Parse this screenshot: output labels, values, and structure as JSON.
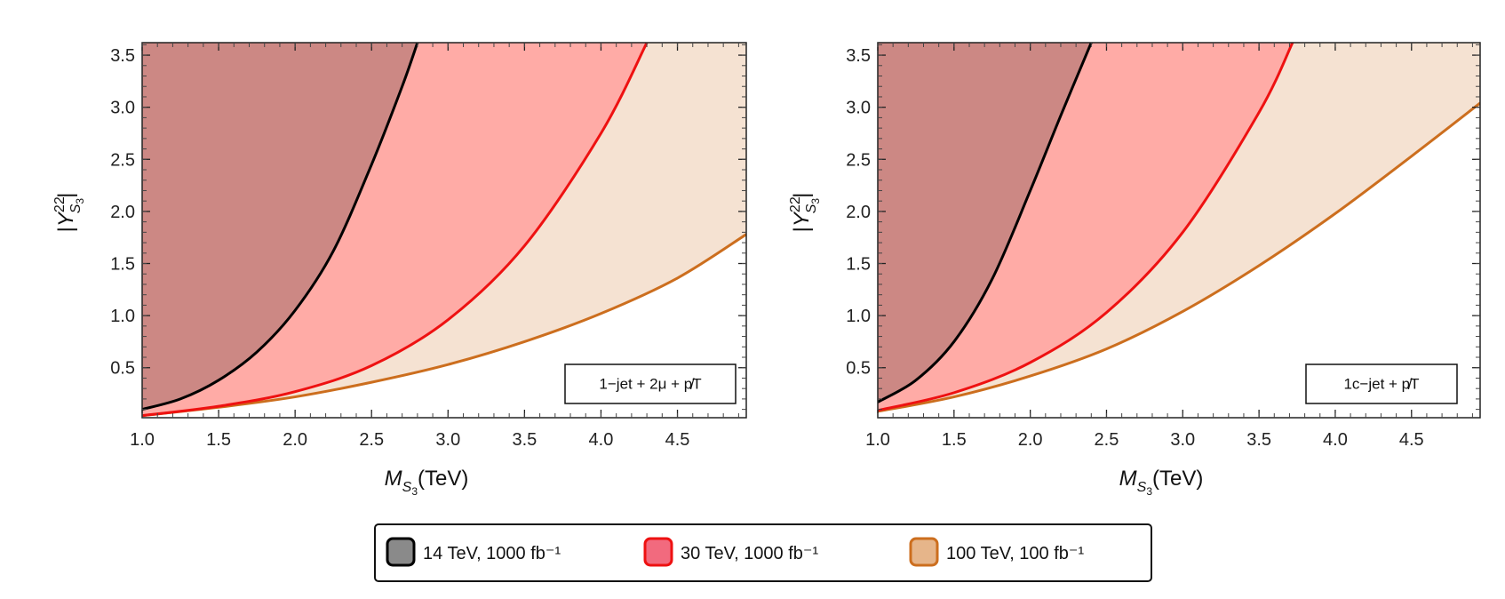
{
  "chart_data": [
    {
      "type": "area",
      "annotation": "1−jet + 2μ + p̸T",
      "xlabel": "M_S3(TeV)",
      "ylabel": "|Y^22_S3|",
      "xlim": [
        1.0,
        4.95
      ],
      "ylim": [
        0.02,
        3.62
      ],
      "xticks": [
        "1.0",
        "1.5",
        "2.0",
        "2.5",
        "3.0",
        "3.5",
        "4.0",
        "4.5"
      ],
      "yticks": [
        "0.5",
        "1.0",
        "1.5",
        "2.0",
        "2.5",
        "3.0",
        "3.5"
      ],
      "grid": false,
      "series": [
        {
          "name": "14 TeV, 1000 fb⁻¹",
          "x": [
            1.0,
            1.25,
            1.5,
            1.75,
            2.0,
            2.25,
            2.5,
            2.7,
            2.8
          ],
          "y": [
            0.1,
            0.2,
            0.38,
            0.65,
            1.05,
            1.62,
            2.45,
            3.2,
            3.62
          ]
        },
        {
          "name": "30 TeV, 1000 fb⁻¹",
          "x": [
            1.0,
            1.5,
            2.0,
            2.5,
            3.0,
            3.5,
            4.0,
            4.3
          ],
          "y": [
            0.04,
            0.13,
            0.27,
            0.52,
            0.96,
            1.67,
            2.75,
            3.62
          ]
        },
        {
          "name": "100 TeV, 100 fb⁻¹",
          "x": [
            1.0,
            1.5,
            2.0,
            2.5,
            3.0,
            3.5,
            4.0,
            4.5,
            4.95
          ],
          "y": [
            0.04,
            0.12,
            0.22,
            0.36,
            0.53,
            0.75,
            1.02,
            1.36,
            1.78
          ]
        }
      ]
    },
    {
      "type": "area",
      "annotation": "1c−jet + p̸T",
      "xlabel": "M_S3(TeV)",
      "ylabel": "|Y^22_S3|",
      "xlim": [
        1.0,
        4.95
      ],
      "ylim": [
        0.02,
        3.62
      ],
      "xticks": [
        "1.0",
        "1.5",
        "2.0",
        "2.5",
        "3.0",
        "3.5",
        "4.0",
        "4.5"
      ],
      "yticks": [
        "0.5",
        "1.0",
        "1.5",
        "2.0",
        "2.5",
        "3.0",
        "3.5"
      ],
      "grid": false,
      "series": [
        {
          "name": "14 TeV, 1000 fb⁻¹",
          "x": [
            1.0,
            1.25,
            1.5,
            1.75,
            2.0,
            2.2,
            2.4
          ],
          "y": [
            0.17,
            0.38,
            0.75,
            1.35,
            2.2,
            2.92,
            3.62
          ]
        },
        {
          "name": "30 TeV, 1000 fb⁻¹",
          "x": [
            1.0,
            1.5,
            2.0,
            2.5,
            3.0,
            3.5,
            3.72
          ],
          "y": [
            0.09,
            0.26,
            0.55,
            1.03,
            1.8,
            2.95,
            3.62
          ]
        },
        {
          "name": "100 TeV, 100 fb⁻¹",
          "x": [
            1.0,
            1.5,
            2.0,
            2.5,
            3.0,
            3.5,
            4.0,
            4.5,
            4.95
          ],
          "y": [
            0.08,
            0.22,
            0.42,
            0.68,
            1.04,
            1.48,
            1.98,
            2.53,
            3.04
          ]
        }
      ]
    }
  ],
  "legend": {
    "placement": "bottom-center",
    "items": [
      {
        "label": "14 TeV, 1000 fb⁻¹",
        "fill": "#8a8a8a",
        "stroke": "#000000"
      },
      {
        "label": "30 TeV, 1000 fb⁻¹",
        "fill": "#f26a7e",
        "stroke": "#ee1111"
      },
      {
        "label": "100 TeV, 100 fb⁻¹",
        "fill": "#e6b58a",
        "stroke": "#cc6e1e"
      }
    ]
  },
  "colors": {
    "region_14": "#cc8884",
    "region_30": "#ffaba6",
    "region_100": "#f5e2d2",
    "line_14": "#000000",
    "line_30": "#ee1111",
    "line_100": "#cc6e1e"
  }
}
